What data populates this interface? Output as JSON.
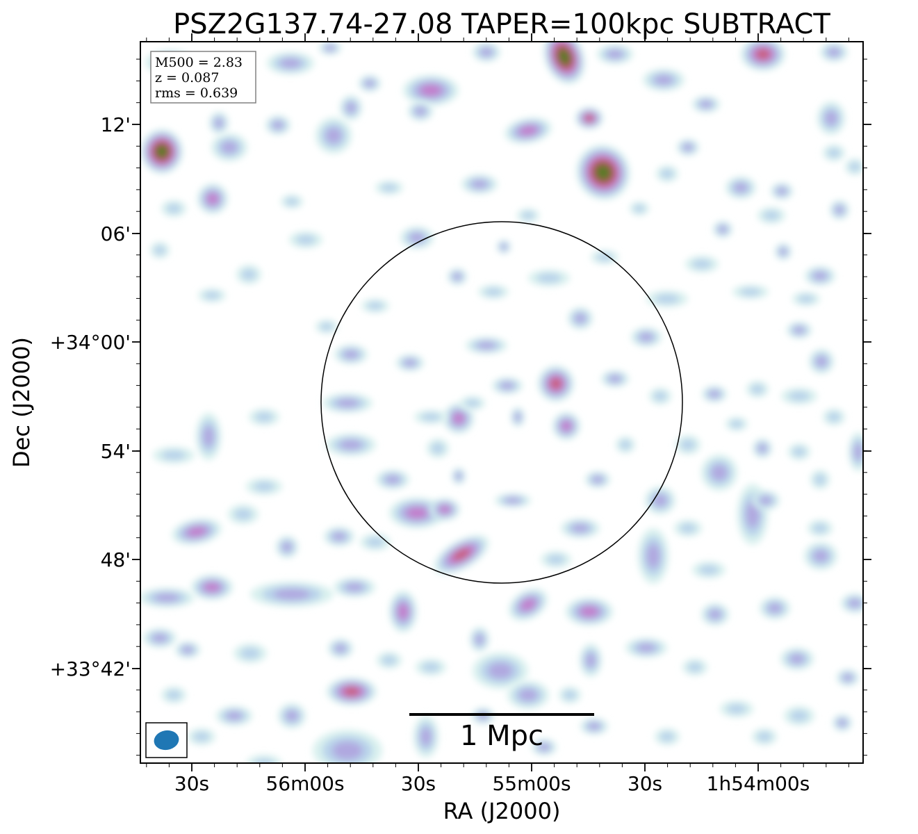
{
  "title": "PSZ2G137.74-27.08 TAPER=100kpc SUBTRACT",
  "axes": {
    "xlabel": "RA (J2000)",
    "ylabel": "Dec (J2000)",
    "x_ticks": [
      "30s",
      "56m00s",
      "30s",
      "55m00s",
      "30s",
      "1h54m00s"
    ],
    "y_ticks": [
      "12'",
      "06'",
      "+34°00'",
      "54'",
      "48'",
      "+33°42'"
    ]
  },
  "info_box": {
    "line1": "M500 = 2.83",
    "line2": "z = 0.087",
    "line3": "rms = 0.639"
  },
  "scalebar": {
    "label": "1 Mpc"
  },
  "colors": {
    "beam": "#1f77b4",
    "frame": "#000000",
    "info_border": "#808080",
    "colormap": [
      "#d8f0ee",
      "#b8d2ea",
      "#b0a8e0",
      "#c37fcc",
      "#c8607e",
      "#9a5a3c",
      "#5a7a2a"
    ]
  },
  "image": {
    "type": "radio continuum map",
    "contour": "circle"
  }
}
